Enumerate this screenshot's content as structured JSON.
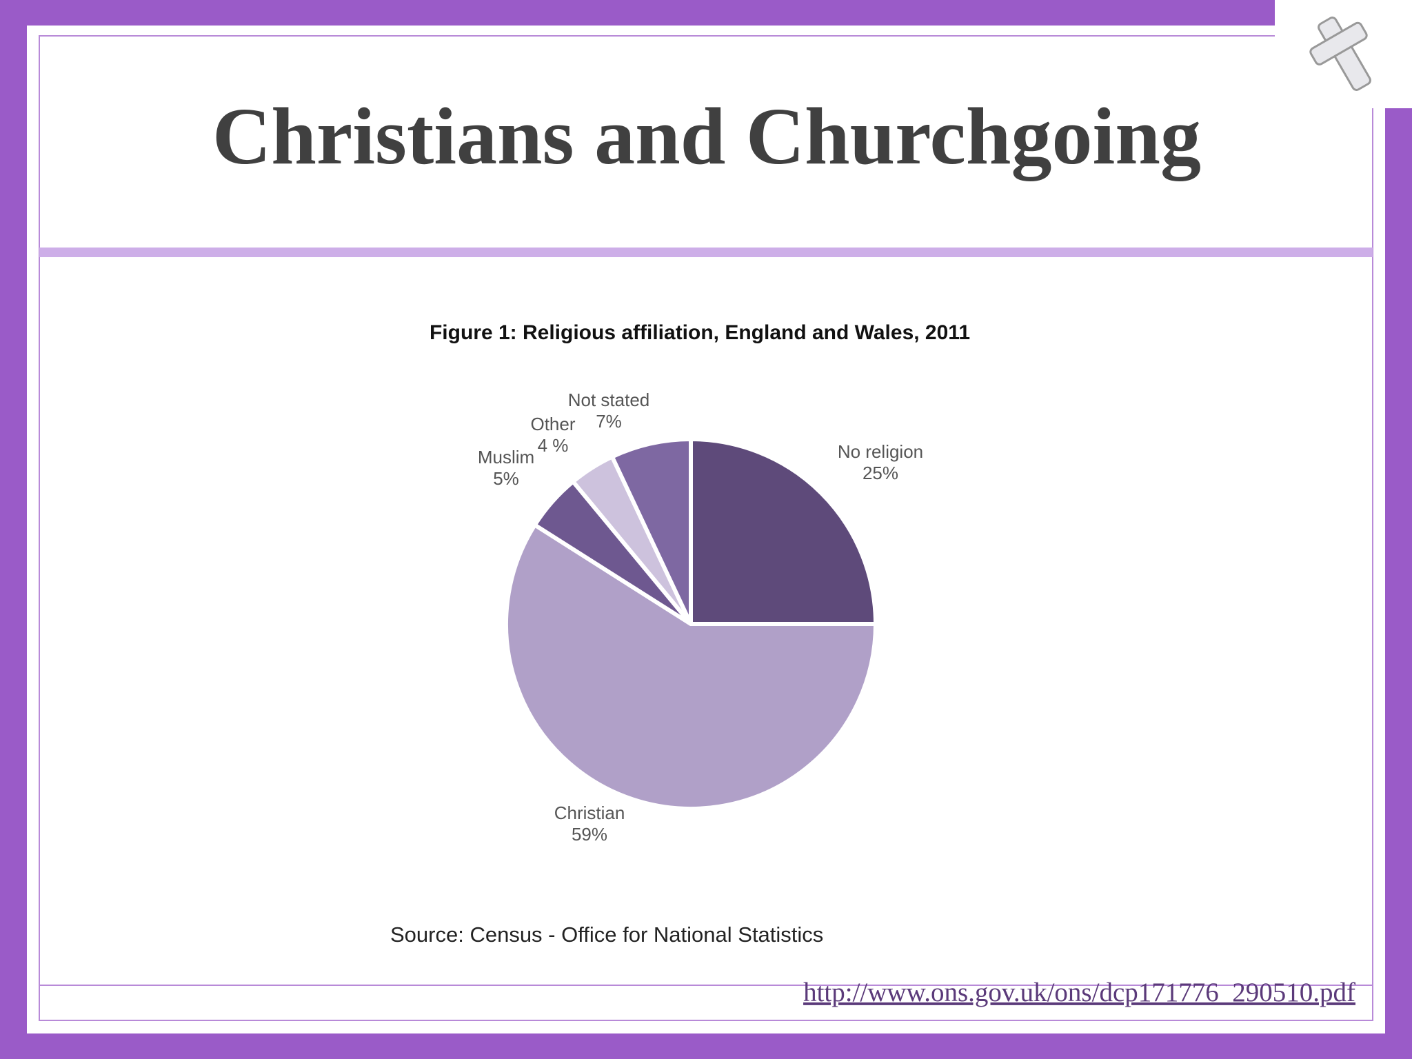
{
  "slide": {
    "title": "Christians and Churchgoing",
    "link": "http://www.ons.gov.uk/ons/dcp171776_290510.pdf"
  },
  "chart_data": {
    "type": "pie",
    "title": "Figure 1: Religious affiliation, England and Wales, 2011",
    "categories": [
      "No religion",
      "Christian",
      "Muslim",
      "Other",
      "Not stated"
    ],
    "values": [
      25,
      59,
      5,
      4,
      7
    ],
    "value_labels": [
      "25%",
      "59%",
      "5%",
      "4 %",
      "7%"
    ],
    "colors": [
      "#5e4a7a",
      "#b0a0c8",
      "#6e5890",
      "#cdc2dd",
      "#7e68a2"
    ],
    "source": "Source: Census - Office for National Statistics"
  }
}
